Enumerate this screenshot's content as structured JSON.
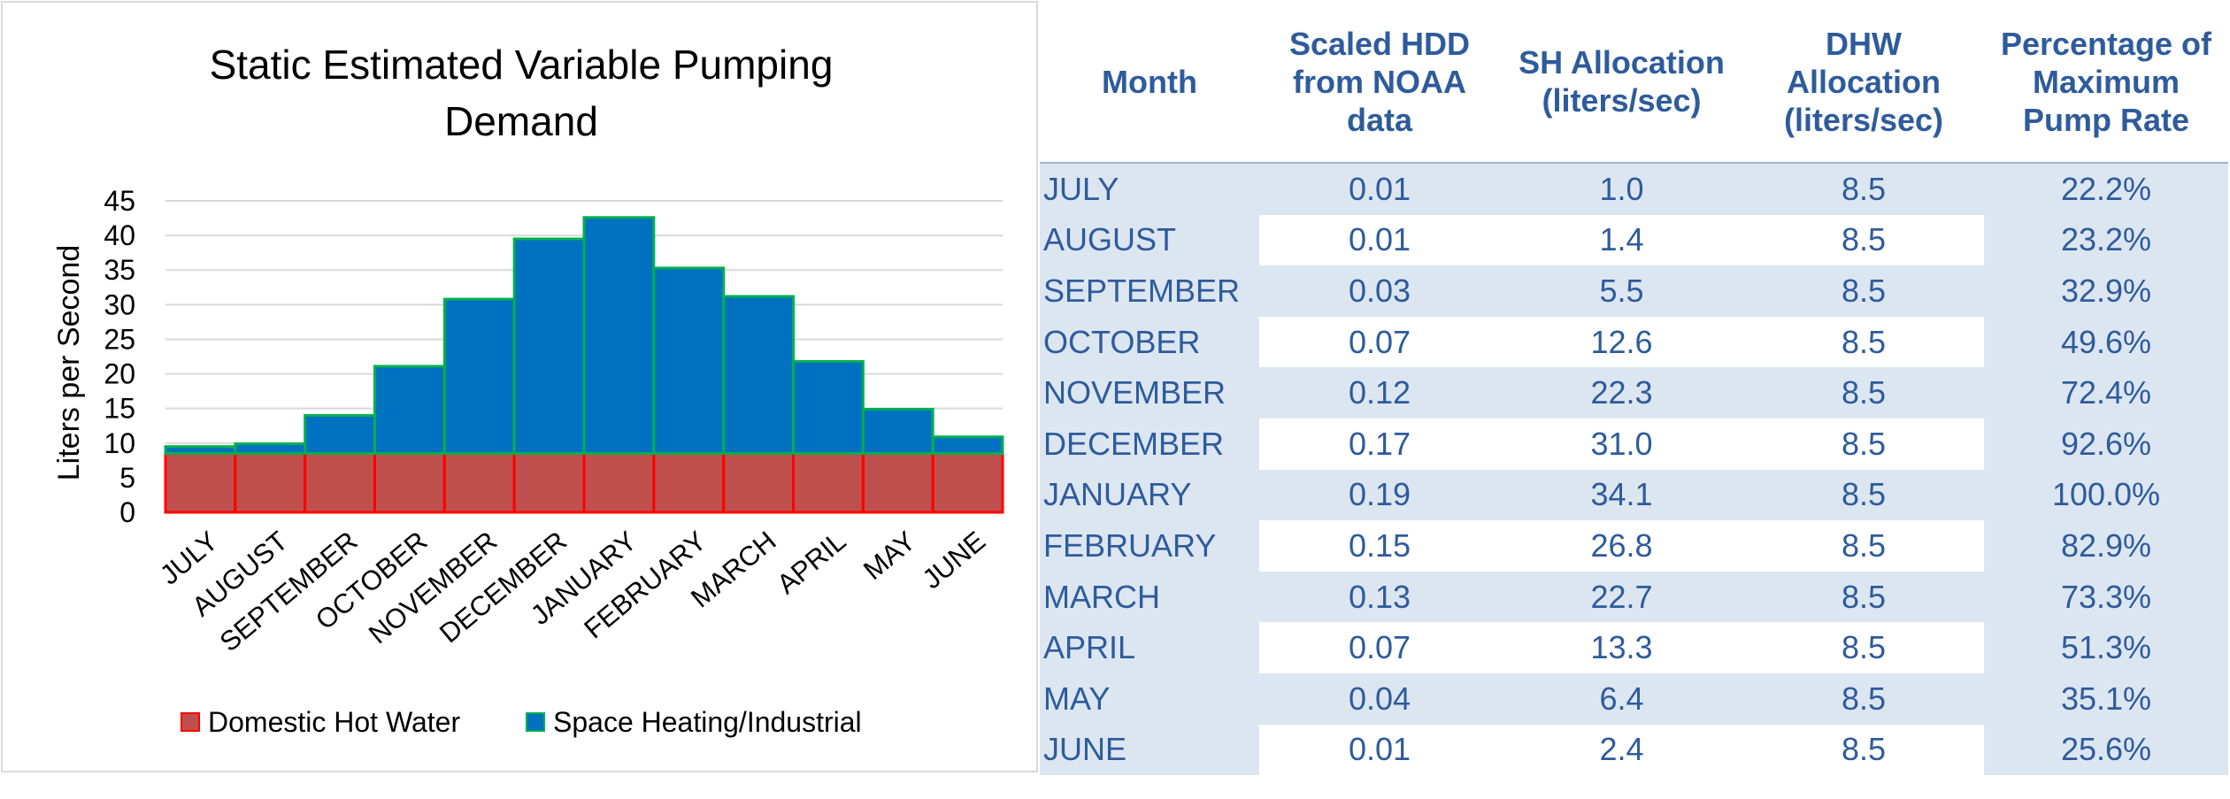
{
  "chart_data": {
    "type": "bar",
    "stacked": true,
    "title": "Static Estimated Variable Pumping Demand",
    "ylabel": "Liters per Second",
    "ylim": [
      0,
      45
    ],
    "yticks": [
      0,
      5,
      10,
      15,
      20,
      25,
      30,
      35,
      40,
      45
    ],
    "grid": true,
    "legend_position": "bottom",
    "categories": [
      "JULY",
      "AUGUST",
      "SEPTEMBER",
      "OCTOBER",
      "NOVEMBER",
      "DECEMBER",
      "JANUARY",
      "FEBRUARY",
      "MARCH",
      "APRIL",
      "MAY",
      "JUNE"
    ],
    "series": [
      {
        "name": "Domestic Hot Water",
        "color": "#c0504d",
        "edge": "#ff0000",
        "values": [
          8.5,
          8.5,
          8.5,
          8.5,
          8.5,
          8.5,
          8.5,
          8.5,
          8.5,
          8.5,
          8.5,
          8.5
        ]
      },
      {
        "name": "Space Heating/Industrial",
        "color": "#0070c0",
        "edge": "#00b050",
        "values": [
          1.0,
          1.4,
          5.5,
          12.6,
          22.3,
          31.0,
          34.1,
          26.8,
          22.7,
          13.3,
          6.4,
          2.4
        ]
      }
    ]
  },
  "table": {
    "headers": [
      "Month",
      "Scaled HDD from NOAA data",
      "SH Allocation (liters/sec)",
      "DHW Allocation (liters/sec)",
      "Percentage of Maximum Pump Rate"
    ],
    "rows": [
      [
        "JULY",
        "0.01",
        "1.0",
        "8.5",
        "22.2%"
      ],
      [
        "AUGUST",
        "0.01",
        "1.4",
        "8.5",
        "23.2%"
      ],
      [
        "SEPTEMBER",
        "0.03",
        "5.5",
        "8.5",
        "32.9%"
      ],
      [
        "OCTOBER",
        "0.07",
        "12.6",
        "8.5",
        "49.6%"
      ],
      [
        "NOVEMBER",
        "0.12",
        "22.3",
        "8.5",
        "72.4%"
      ],
      [
        "DECEMBER",
        "0.17",
        "31.0",
        "8.5",
        "92.6%"
      ],
      [
        "JANUARY",
        "0.19",
        "34.1",
        "8.5",
        "100.0%"
      ],
      [
        "FEBRUARY",
        "0.15",
        "26.8",
        "8.5",
        "82.9%"
      ],
      [
        "MARCH",
        "0.13",
        "22.7",
        "8.5",
        "73.3%"
      ],
      [
        "APRIL",
        "0.07",
        "13.3",
        "8.5",
        "51.3%"
      ],
      [
        "MAY",
        "0.04",
        "6.4",
        "8.5",
        "35.1%"
      ],
      [
        "JUNE",
        "0.01",
        "2.4",
        "8.5",
        "25.6%"
      ]
    ]
  },
  "colors": {
    "text_blue": "#2e5b9c",
    "band": "#dce6f1",
    "grid": "#d9d9d9"
  }
}
